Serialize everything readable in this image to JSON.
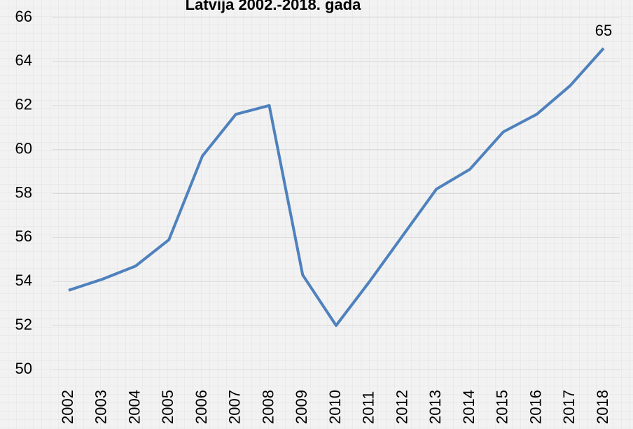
{
  "chart_data": {
    "type": "line",
    "title": "Latvija 2002.-2018. gada",
    "categories": [
      "2002",
      "2003",
      "2004",
      "2005",
      "2006",
      "2007",
      "2008",
      "2009",
      "2010",
      "2011",
      "2012",
      "2013",
      "2014",
      "2015",
      "2016",
      "2017",
      "2018"
    ],
    "series": [
      {
        "name": "Latvija",
        "color": "#4f81bd",
        "values": [
          53.6,
          54.1,
          54.7,
          55.9,
          59.7,
          61.6,
          62.0,
          54.3,
          52.0,
          54.0,
          56.1,
          58.2,
          59.1,
          60.8,
          61.6,
          62.9,
          64.6
        ],
        "value_labels": [
          null,
          null,
          null,
          null,
          null,
          null,
          null,
          null,
          null,
          null,
          null,
          null,
          null,
          null,
          null,
          null,
          "65"
        ]
      }
    ],
    "ylim": [
      50,
      66
    ],
    "yticks": [
      50,
      52,
      54,
      56,
      58,
      60,
      62,
      64,
      66
    ],
    "grid": true
  }
}
